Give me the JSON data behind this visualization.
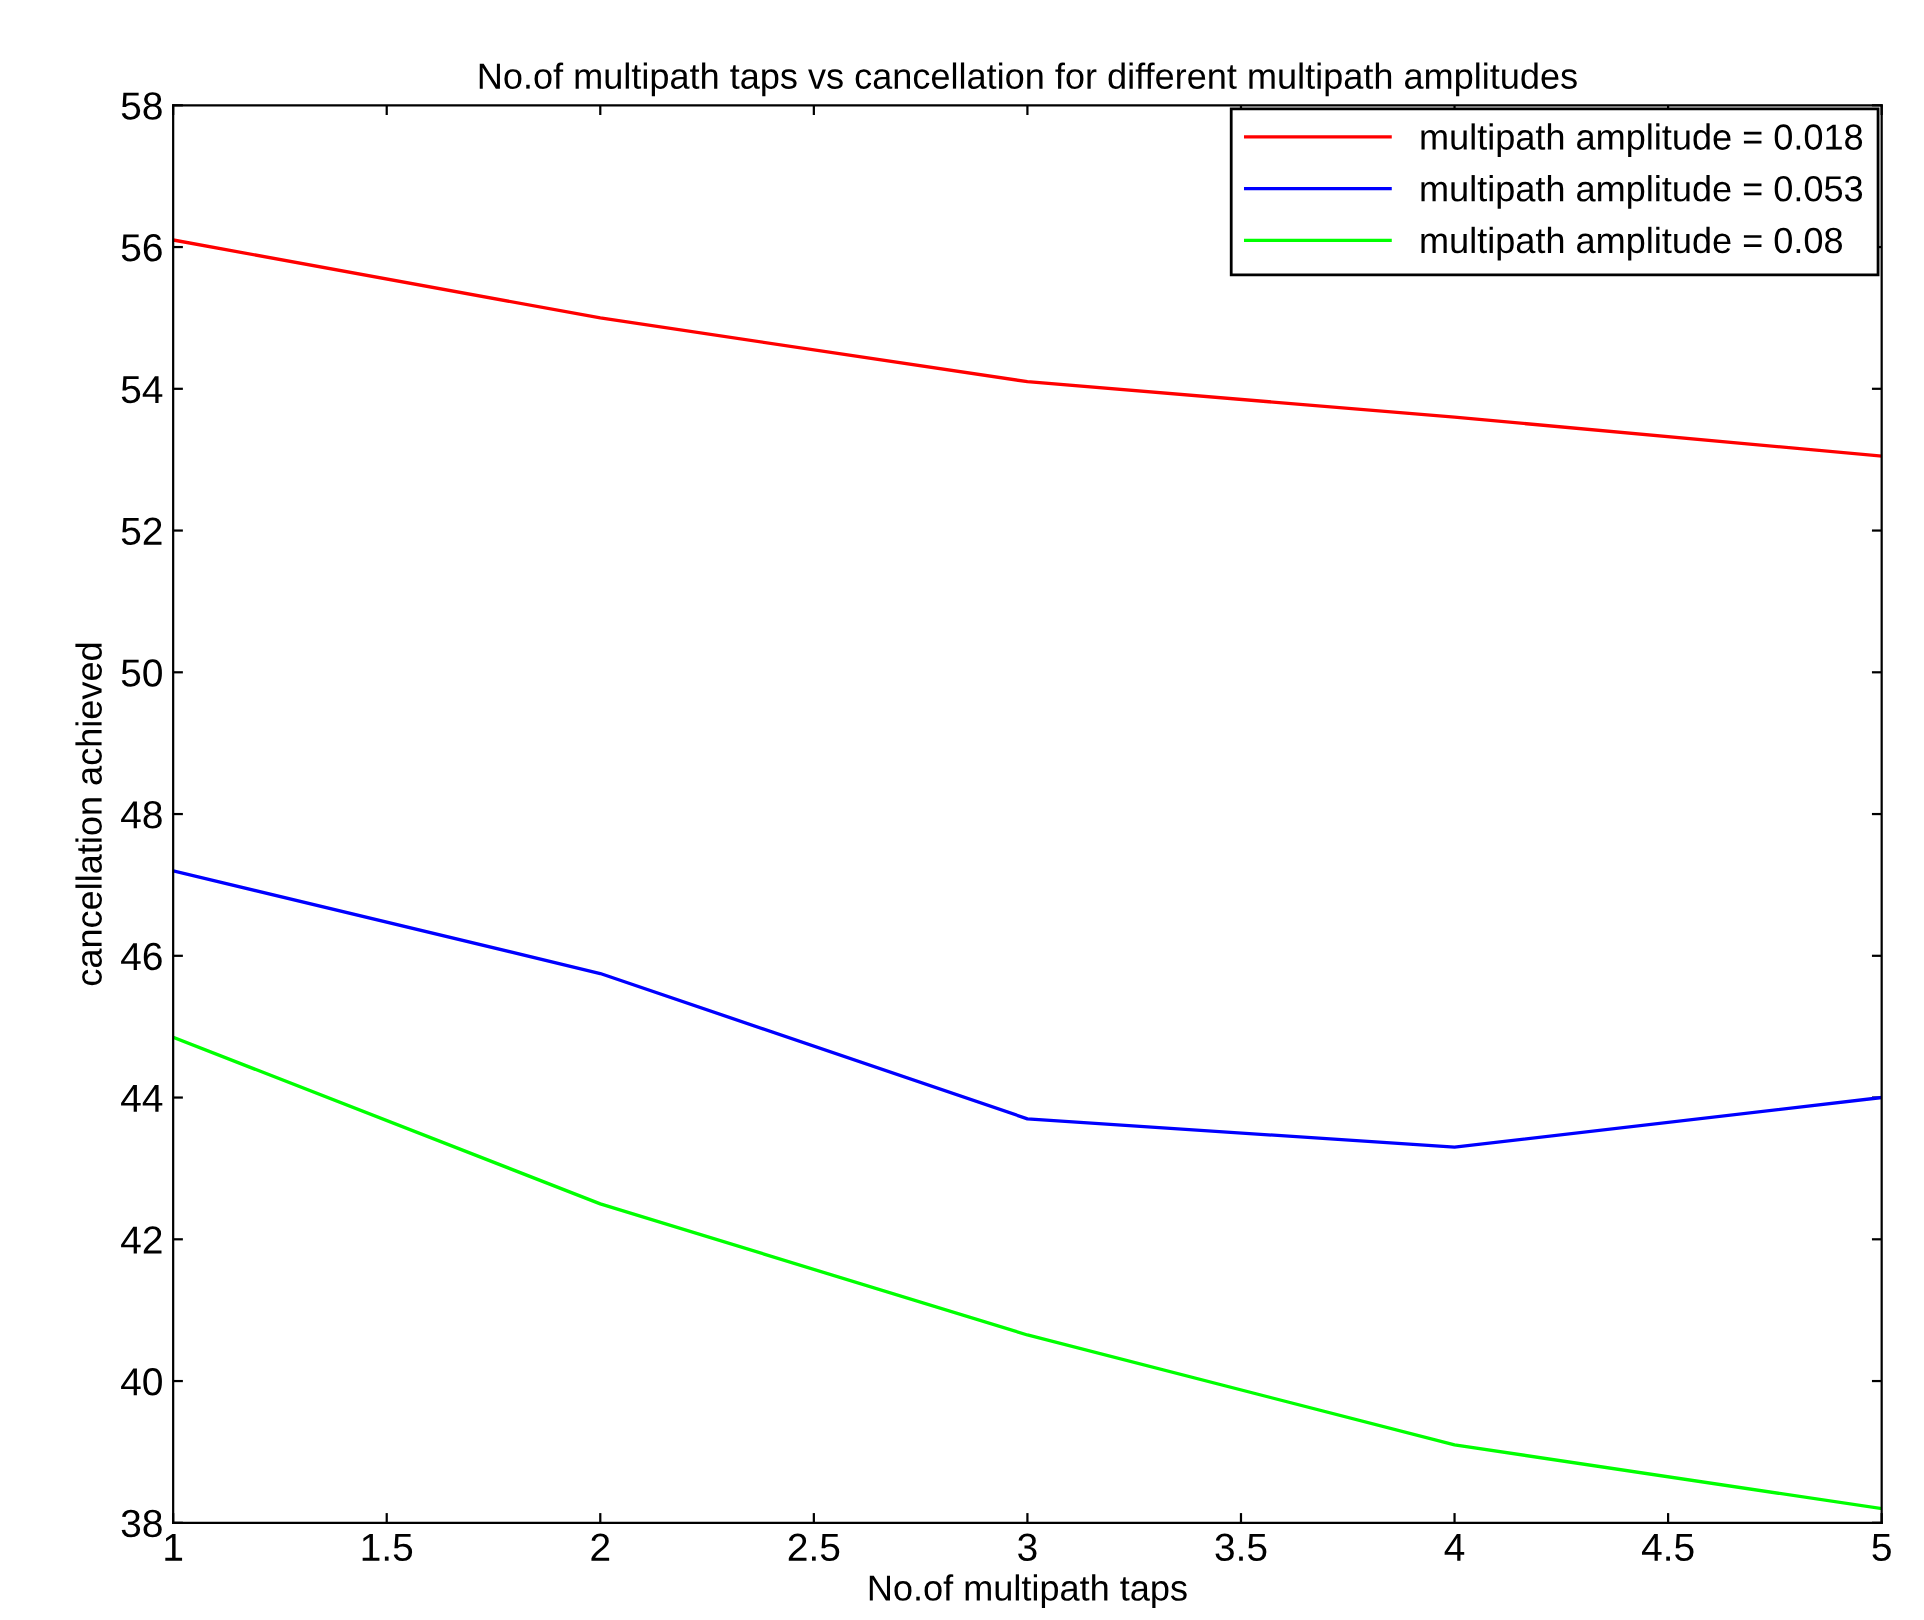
{
  "chart_data": {
    "type": "line",
    "title": "No.of multipath taps vs cancellation for different multipath amplitudes",
    "xlabel": "No.of multipath taps",
    "ylabel": "cancellation achieved",
    "x": [
      1,
      2,
      3,
      4,
      5
    ],
    "series": [
      {
        "name": "multipath amplitude = 0.018",
        "color": "#ff0000",
        "values": [
          56.1,
          55.0,
          54.1,
          53.6,
          53.05
        ]
      },
      {
        "name": "multipath amplitude = 0.053",
        "color": "#0000ff",
        "values": [
          47.2,
          45.75,
          43.7,
          43.3,
          44.0
        ]
      },
      {
        "name": "multipath amplitude = 0.08",
        "color": "#00ff00",
        "values": [
          44.85,
          42.5,
          40.65,
          39.1,
          38.2
        ]
      }
    ],
    "xlim": [
      1,
      5
    ],
    "xticks": [
      1,
      1.5,
      2,
      2.5,
      3,
      3.5,
      4,
      4.5,
      5
    ],
    "ylim": [
      38,
      58
    ],
    "yticks": [
      38,
      40,
      42,
      44,
      46,
      48,
      50,
      52,
      54,
      56,
      58
    ],
    "grid": false,
    "legend": "top right",
    "marker": "none",
    "line_style": "solid"
  }
}
